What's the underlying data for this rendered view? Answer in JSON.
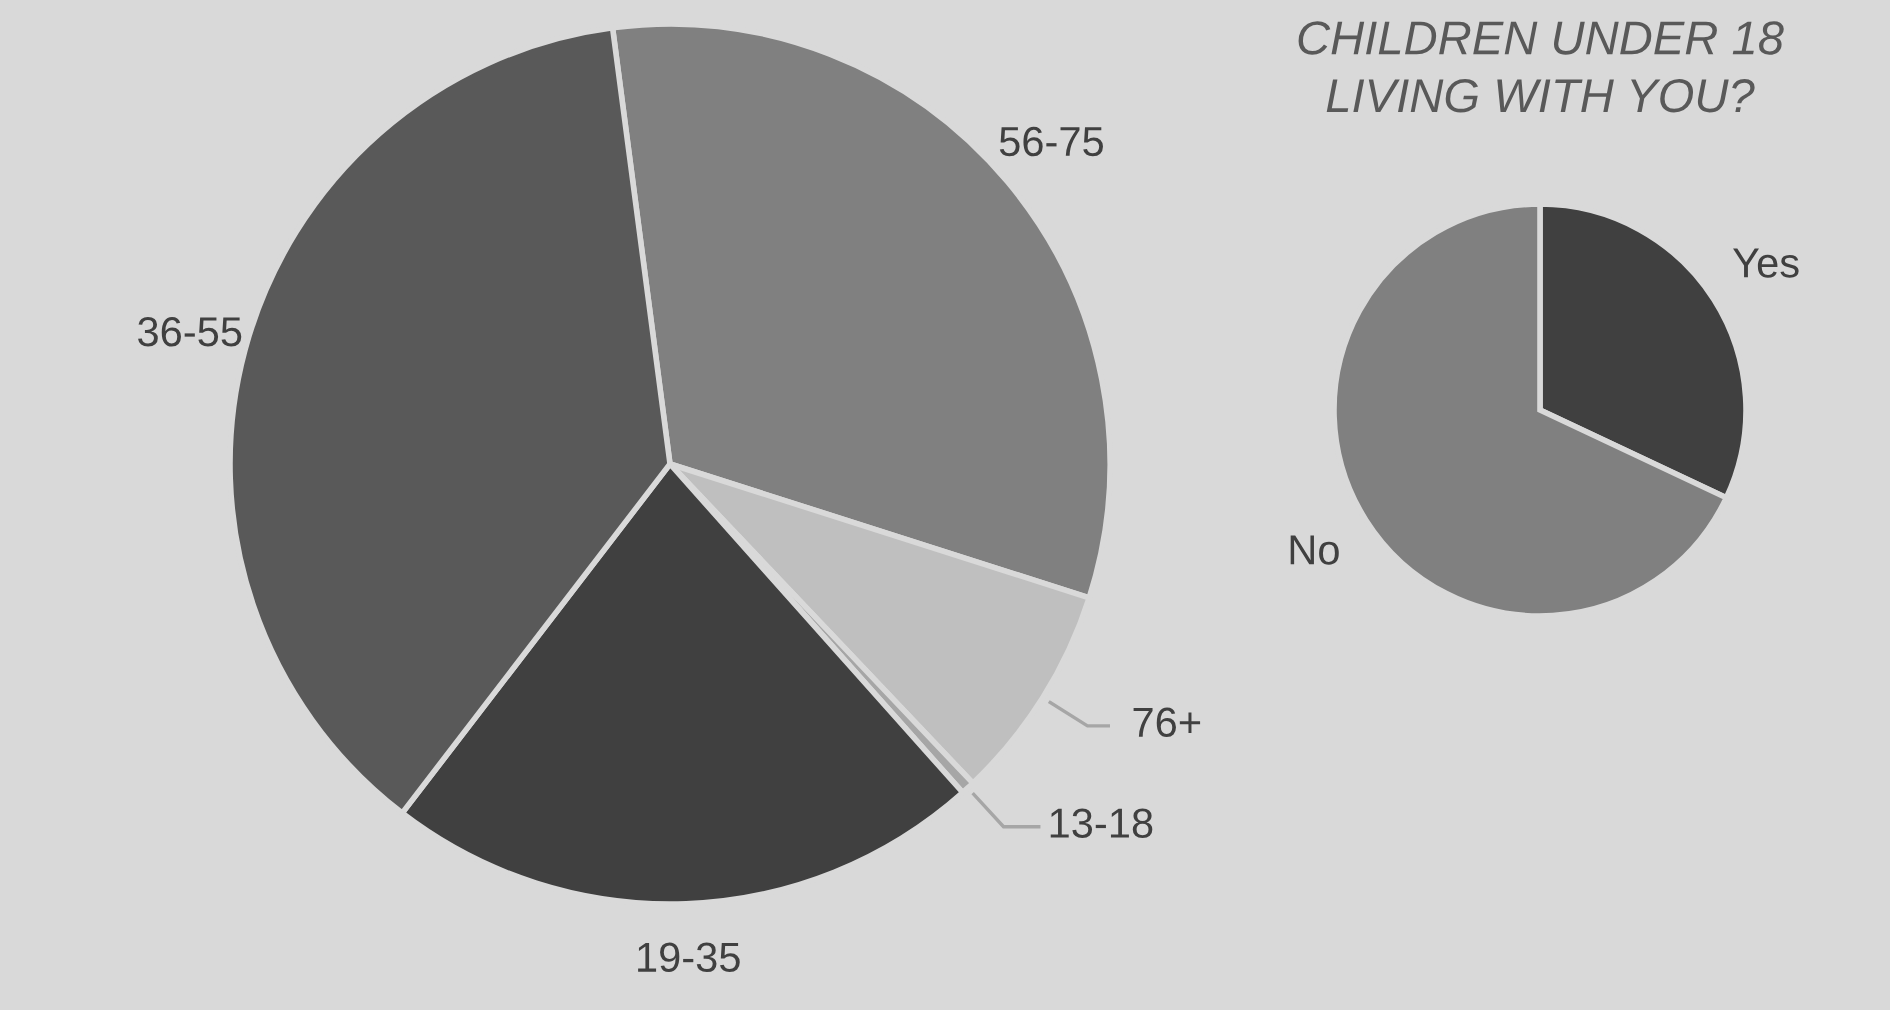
{
  "chart_data": [
    {
      "type": "pie",
      "categories": [
        "56-75",
        "76+",
        "13-18",
        "19-35",
        "36-55"
      ],
      "values": [
        32,
        8,
        0.5,
        22,
        37.5
      ],
      "colors": [
        "#808080",
        "#bfbfbf",
        "#a6a6a6",
        "#404040",
        "#595959"
      ]
    },
    {
      "type": "pie",
      "title": "CHILDREN UNDER 18 LIVING WITH YOU?",
      "categories": [
        "Yes",
        "No"
      ],
      "values": [
        32,
        68
      ],
      "colors": [
        "#404040",
        "#808080"
      ]
    }
  ]
}
